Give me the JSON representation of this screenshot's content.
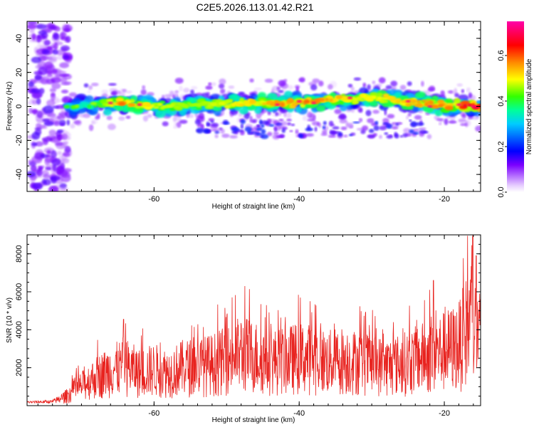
{
  "title": "C2E5.2026.113.01.42.R21",
  "chart_data": [
    {
      "type": "heatmap",
      "xlabel": "Height of straight line (km)",
      "ylabel": "Frequency (Hz)",
      "xlim": [
        -77.5,
        -15
      ],
      "ylim": [
        -50,
        50
      ],
      "xticks": [
        -60,
        -40,
        -20
      ],
      "xtick_labels": [
        "-60",
        "-40",
        "-20"
      ],
      "yticks": [
        40,
        20,
        0,
        -20,
        -40
      ],
      "ytick_labels": [
        "40",
        "20",
        "0",
        "-20",
        "-40"
      ],
      "colorbar": {
        "label": "Normalized spectral amplitude",
        "range": [
          0,
          0.75
        ],
        "ticks": [
          0.0,
          0.2,
          0.4,
          0.6
        ],
        "tick_labels": [
          "0.0",
          "0.2",
          "0.4",
          "0.6"
        ]
      },
      "ridge": [
        {
          "x": -72,
          "freq": 0,
          "amp": 0.25
        },
        {
          "x": -68,
          "freq": 1,
          "amp": 0.35
        },
        {
          "x": -65,
          "freq": 2,
          "amp": 0.6
        },
        {
          "x": -60,
          "freq": 0,
          "amp": 0.5
        },
        {
          "x": -55,
          "freq": 1,
          "amp": 0.45
        },
        {
          "x": -50,
          "freq": 2,
          "amp": 0.5
        },
        {
          "x": -45,
          "freq": 2,
          "amp": 0.55
        },
        {
          "x": -40,
          "freq": 2,
          "amp": 0.6
        },
        {
          "x": -35,
          "freq": 4,
          "amp": 0.55
        },
        {
          "x": -30,
          "freq": 5,
          "amp": 0.5
        },
        {
          "x": -25,
          "freq": 3,
          "amp": 0.55
        },
        {
          "x": -20,
          "freq": 1,
          "amp": 0.6
        },
        {
          "x": -16,
          "freq": 0,
          "amp": 0.7
        }
      ]
    },
    {
      "type": "line",
      "xlabel": "Height of straight line (km)",
      "ylabel": "SNR (10 * v/v)",
      "xlim": [
        -77.5,
        -15
      ],
      "ylim": [
        0,
        9000
      ],
      "xticks": [
        -60,
        -40,
        -20
      ],
      "xtick_labels": [
        "-60",
        "-40",
        "-20"
      ],
      "yticks": [
        2000,
        4000,
        6000,
        8000
      ],
      "ytick_labels": [
        "2000",
        "4000",
        "6000",
        "8000"
      ],
      "series": [
        {
          "name": "SNR",
          "color": "#e8231f",
          "envelope": [
            {
              "x": -77.5,
              "y": 250
            },
            {
              "x": -74,
              "y": 300
            },
            {
              "x": -72,
              "y": 900
            },
            {
              "x": -70,
              "y": 1800
            },
            {
              "x": -68,
              "y": 2600
            },
            {
              "x": -66,
              "y": 3200
            },
            {
              "x": -64,
              "y": 3600
            },
            {
              "x": -62,
              "y": 3000
            },
            {
              "x": -60,
              "y": 3300
            },
            {
              "x": -58,
              "y": 3000
            },
            {
              "x": -56,
              "y": 3500
            },
            {
              "x": -54,
              "y": 3600
            },
            {
              "x": -52,
              "y": 3800
            },
            {
              "x": -50,
              "y": 4200
            },
            {
              "x": -48,
              "y": 4800
            },
            {
              "x": -46,
              "y": 4500
            },
            {
              "x": -44,
              "y": 4000
            },
            {
              "x": -42,
              "y": 4200
            },
            {
              "x": -40,
              "y": 4400
            },
            {
              "x": -38,
              "y": 4300
            },
            {
              "x": -36,
              "y": 4000
            },
            {
              "x": -34,
              "y": 4200
            },
            {
              "x": -32,
              "y": 4000
            },
            {
              "x": -30,
              "y": 3800
            },
            {
              "x": -28,
              "y": 3600
            },
            {
              "x": -26,
              "y": 3800
            },
            {
              "x": -24,
              "y": 4200
            },
            {
              "x": -22,
              "y": 4600
            },
            {
              "x": -20,
              "y": 5000
            },
            {
              "x": -18,
              "y": 5500
            },
            {
              "x": -16.5,
              "y": 7500
            },
            {
              "x": -15,
              "y": 6000
            }
          ],
          "peaks": [
            {
              "x": -64.2,
              "y": 4550
            },
            {
              "x": -47.5,
              "y": 6300
            },
            {
              "x": -44.5,
              "y": 5300
            },
            {
              "x": -38.5,
              "y": 5500
            },
            {
              "x": -21.5,
              "y": 6600
            },
            {
              "x": -16.8,
              "y": 8950
            },
            {
              "x": -16.1,
              "y": 8900
            },
            {
              "x": -15.6,
              "y": 7900
            }
          ]
        }
      ]
    }
  ]
}
